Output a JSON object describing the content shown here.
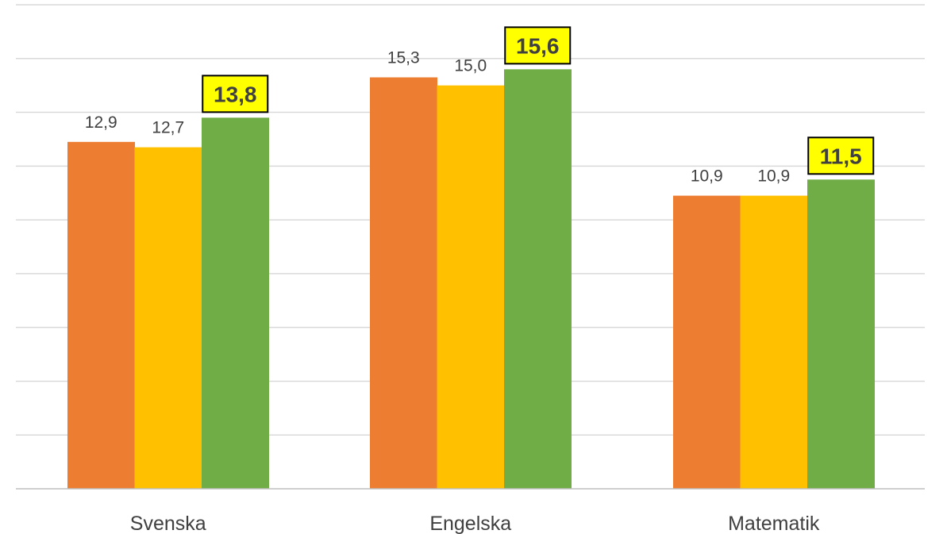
{
  "chart_data": {
    "type": "bar",
    "categories": [
      "Svenska",
      "Engelska",
      "Matematik"
    ],
    "series": [
      {
        "values": [
          12.9,
          15.3,
          10.9
        ],
        "color": "#ed7d31"
      },
      {
        "values": [
          12.7,
          15.0,
          10.9
        ],
        "color": "#ffc000"
      },
      {
        "values": [
          13.8,
          15.6,
          11.5
        ],
        "color": "#70ad47"
      }
    ],
    "value_labels": [
      [
        "12,9",
        "15,3",
        "10,9"
      ],
      [
        "12,7",
        "15,0",
        "10,9"
      ],
      [
        "13,8",
        "15,6",
        "11,5"
      ]
    ],
    "highlighted_series": 2,
    "highlight_color": "#ffff00",
    "ylim": [
      0,
      18
    ],
    "y_tick_step": 2,
    "grid": true,
    "legend": "none",
    "title": "",
    "xlabel": "",
    "ylabel": ""
  }
}
